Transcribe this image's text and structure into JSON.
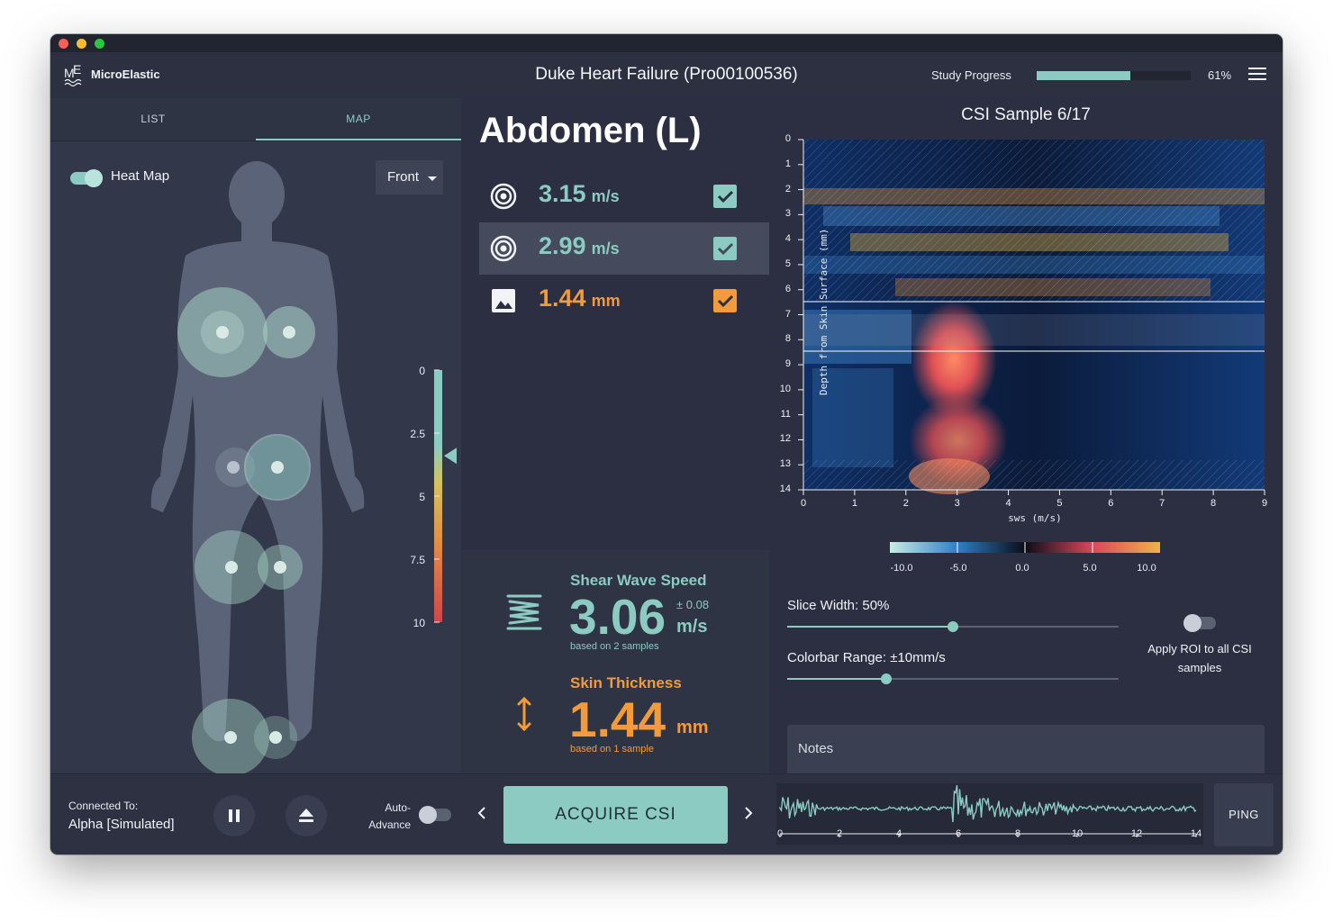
{
  "app": {
    "brand": "MicroElastic",
    "study_title": "Duke Heart Failure (Pro00100536)"
  },
  "study_progress": {
    "label": "Study Progress",
    "value": 0.61,
    "percent_text": "61%"
  },
  "left_panel": {
    "tabs": [
      {
        "label": "LIST",
        "active": false
      },
      {
        "label": "MAP",
        "active": true
      }
    ],
    "heatmap": {
      "label": "Heat Map",
      "enabled": true
    },
    "view_select": {
      "selected": "Front"
    },
    "scale": {
      "ticks": [
        "0",
        "2.5",
        "5",
        "7.5",
        "10"
      ],
      "marker_value": 3.4
    }
  },
  "middle_panel": {
    "region": "Abdomen (L)",
    "measurements": [
      {
        "icon": "target-icon",
        "value": "3.15",
        "unit": "m/s",
        "checked": true,
        "selected": false,
        "color": "#8bcbc1"
      },
      {
        "icon": "target-icon",
        "value": "2.99",
        "unit": "m/s",
        "checked": true,
        "selected": true,
        "color": "#8bcbc1"
      },
      {
        "icon": "image-icon",
        "value": "1.44",
        "unit": "mm",
        "checked": true,
        "selected": false,
        "color": "#f39a3a"
      }
    ],
    "shear_wave": {
      "label": "Shear Wave Speed",
      "value": "3.06",
      "unit": "m/s",
      "error": "± 0.08",
      "note": "based on 2 samples"
    },
    "skin_thickness": {
      "label": "Skin Thickness",
      "value": "1.44",
      "unit": "mm",
      "note": "based on 1 sample"
    }
  },
  "right_panel": {
    "title": "CSI Sample 6/17",
    "y_axis": {
      "label": "Depth from Skin Surface (mm)",
      "ticks": [
        "0",
        "1",
        "2",
        "3",
        "4",
        "5",
        "6",
        "7",
        "8",
        "9",
        "10",
        "11",
        "12",
        "13",
        "14"
      ]
    },
    "x_axis": {
      "label": "sws (m/s)",
      "ticks": [
        "0",
        "1",
        "2",
        "3",
        "4",
        "5",
        "6",
        "7",
        "8",
        "9"
      ]
    },
    "colorbar": {
      "ticks": [
        "-10.0",
        "-5.0",
        "0.0",
        "5.0",
        "10.0"
      ]
    },
    "slice_width": {
      "label": "Slice Width: 50%",
      "value": 0.5
    },
    "colorbar_range": {
      "label": "Colorbar Range: ±10mm/s",
      "value": 0.3
    },
    "apply_roi": {
      "label": "Apply ROI to all CSI samples",
      "enabled": false
    },
    "notes": {
      "placeholder": "Notes"
    }
  },
  "footer": {
    "connected_label": "Connected To:",
    "connected_value": "Alpha [Simulated]",
    "auto_advance": {
      "label": "Auto-Advance",
      "enabled": false
    },
    "acquire_label": "ACQUIRE CSI",
    "waveform_ticks": [
      "0",
      "2",
      "4",
      "6",
      "8",
      "10",
      "12",
      "14"
    ],
    "ping_label": "PING"
  },
  "colors": {
    "accent": "#8bcbc1",
    "orange": "#f39a3a",
    "panel": "#2b2f41"
  }
}
